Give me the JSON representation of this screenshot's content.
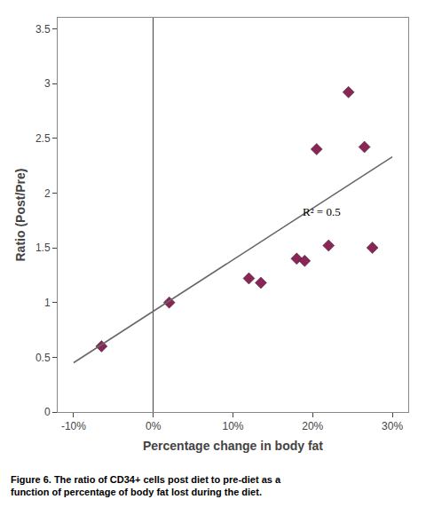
{
  "chart_data": {
    "type": "scatter",
    "xlabel": "Percentage change in body fat",
    "ylabel": "Ratio (Post/Pre)",
    "series": [
      {
        "type": "scatter",
        "x": [
          -0.065,
          0.02,
          0.12,
          0.135,
          0.18,
          0.19,
          0.205,
          0.22,
          0.245,
          0.265,
          0.275
        ],
        "values": [
          0.6,
          1.0,
          1.22,
          1.18,
          1.4,
          1.38,
          2.4,
          1.52,
          2.92,
          2.42,
          1.5
        ],
        "color": "#8B2558",
        "marker": "diamond"
      },
      {
        "type": "line",
        "x": [
          -0.1,
          0.3
        ],
        "values": [
          0.45,
          2.33
        ],
        "color": "#666666",
        "line_style": "solid"
      }
    ],
    "annotations": [
      {
        "text": "R² = 0.5",
        "x": 0.185,
        "y": 1.83
      }
    ],
    "caption": [
      "Figure 6. The ratio of CD34+ cells post diet to pre-diet as a",
      "function of percentage of body fat lost during the diet."
    ],
    "xlim": [
      -0.12,
      0.32
    ],
    "ylim": [
      0,
      3.6
    ],
    "xticks": [
      {
        "value": -0.1,
        "label": "-10%"
      },
      {
        "value": 0.0,
        "label": "0%"
      },
      {
        "value": 0.1,
        "label": "10%"
      },
      {
        "value": 0.2,
        "label": "20%"
      },
      {
        "value": 0.3,
        "label": "30%"
      }
    ],
    "yticks": [
      0,
      0.5,
      1,
      1.5,
      2,
      2.5,
      3,
      3.5
    ],
    "grid": false
  }
}
